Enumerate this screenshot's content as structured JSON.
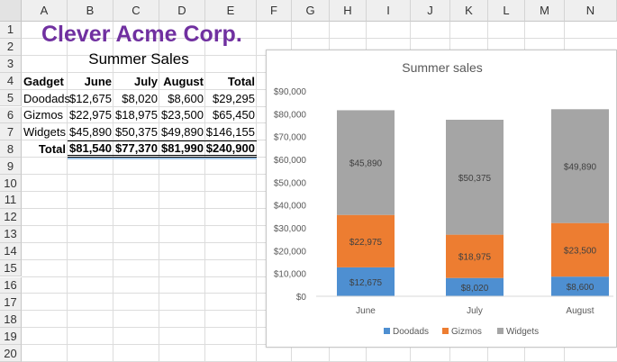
{
  "sheet": {
    "columns": [
      "A",
      "B",
      "C",
      "D",
      "E",
      "F",
      "G",
      "H",
      "I",
      "J",
      "K",
      "L",
      "M",
      "N"
    ],
    "rows": [
      "1",
      "2",
      "3",
      "4",
      "5",
      "6",
      "7",
      "8",
      "9",
      "10",
      "11",
      "12",
      "13",
      "14",
      "15",
      "16",
      "17",
      "18",
      "19",
      "20"
    ],
    "title": "Clever Acme Corp.",
    "subtitle": "Summer Sales",
    "headers": [
      "Gadget",
      "June",
      "July",
      "August",
      "Total"
    ],
    "data": [
      [
        "Doodads",
        "$12,675",
        "$8,020",
        "$8,600",
        "$29,295"
      ],
      [
        "Gizmos",
        "$22,975",
        "$18,975",
        "$23,500",
        "$65,450"
      ],
      [
        "Widgets",
        "$45,890",
        "$50,375",
        "$49,890",
        "$146,155"
      ]
    ],
    "totals": [
      "Total",
      "$81,540",
      "$77,370",
      "$81,990",
      "$240,900"
    ]
  },
  "chart_data": {
    "type": "bar",
    "stacked": true,
    "title": "Summer sales",
    "categories": [
      "June",
      "July",
      "August"
    ],
    "series": [
      {
        "name": "Doodads",
        "values": [
          12675,
          8020,
          8600
        ],
        "labels": [
          "$12,675",
          "$8,020",
          "$8,600"
        ],
        "color": "#4e8fd1"
      },
      {
        "name": "Gizmos",
        "values": [
          22975,
          18975,
          23500
        ],
        "labels": [
          "$22,975",
          "$18,975",
          "$23,500"
        ],
        "color": "#ed7d31"
      },
      {
        "name": "Widgets",
        "values": [
          45890,
          50375,
          49890
        ],
        "labels": [
          "$45,890",
          "$50,375",
          "$49,890"
        ],
        "color": "#a5a5a5"
      }
    ],
    "ylim": [
      0,
      90000
    ],
    "yticks": [
      0,
      10000,
      20000,
      30000,
      40000,
      50000,
      60000,
      70000,
      80000,
      90000
    ],
    "ytick_labels": [
      "$0",
      "$10,000",
      "$20,000",
      "$30,000",
      "$40,000",
      "$50,000",
      "$60,000",
      "$70,000",
      "$80,000",
      "$90,000"
    ],
    "grid": false,
    "legend": "bottom"
  }
}
